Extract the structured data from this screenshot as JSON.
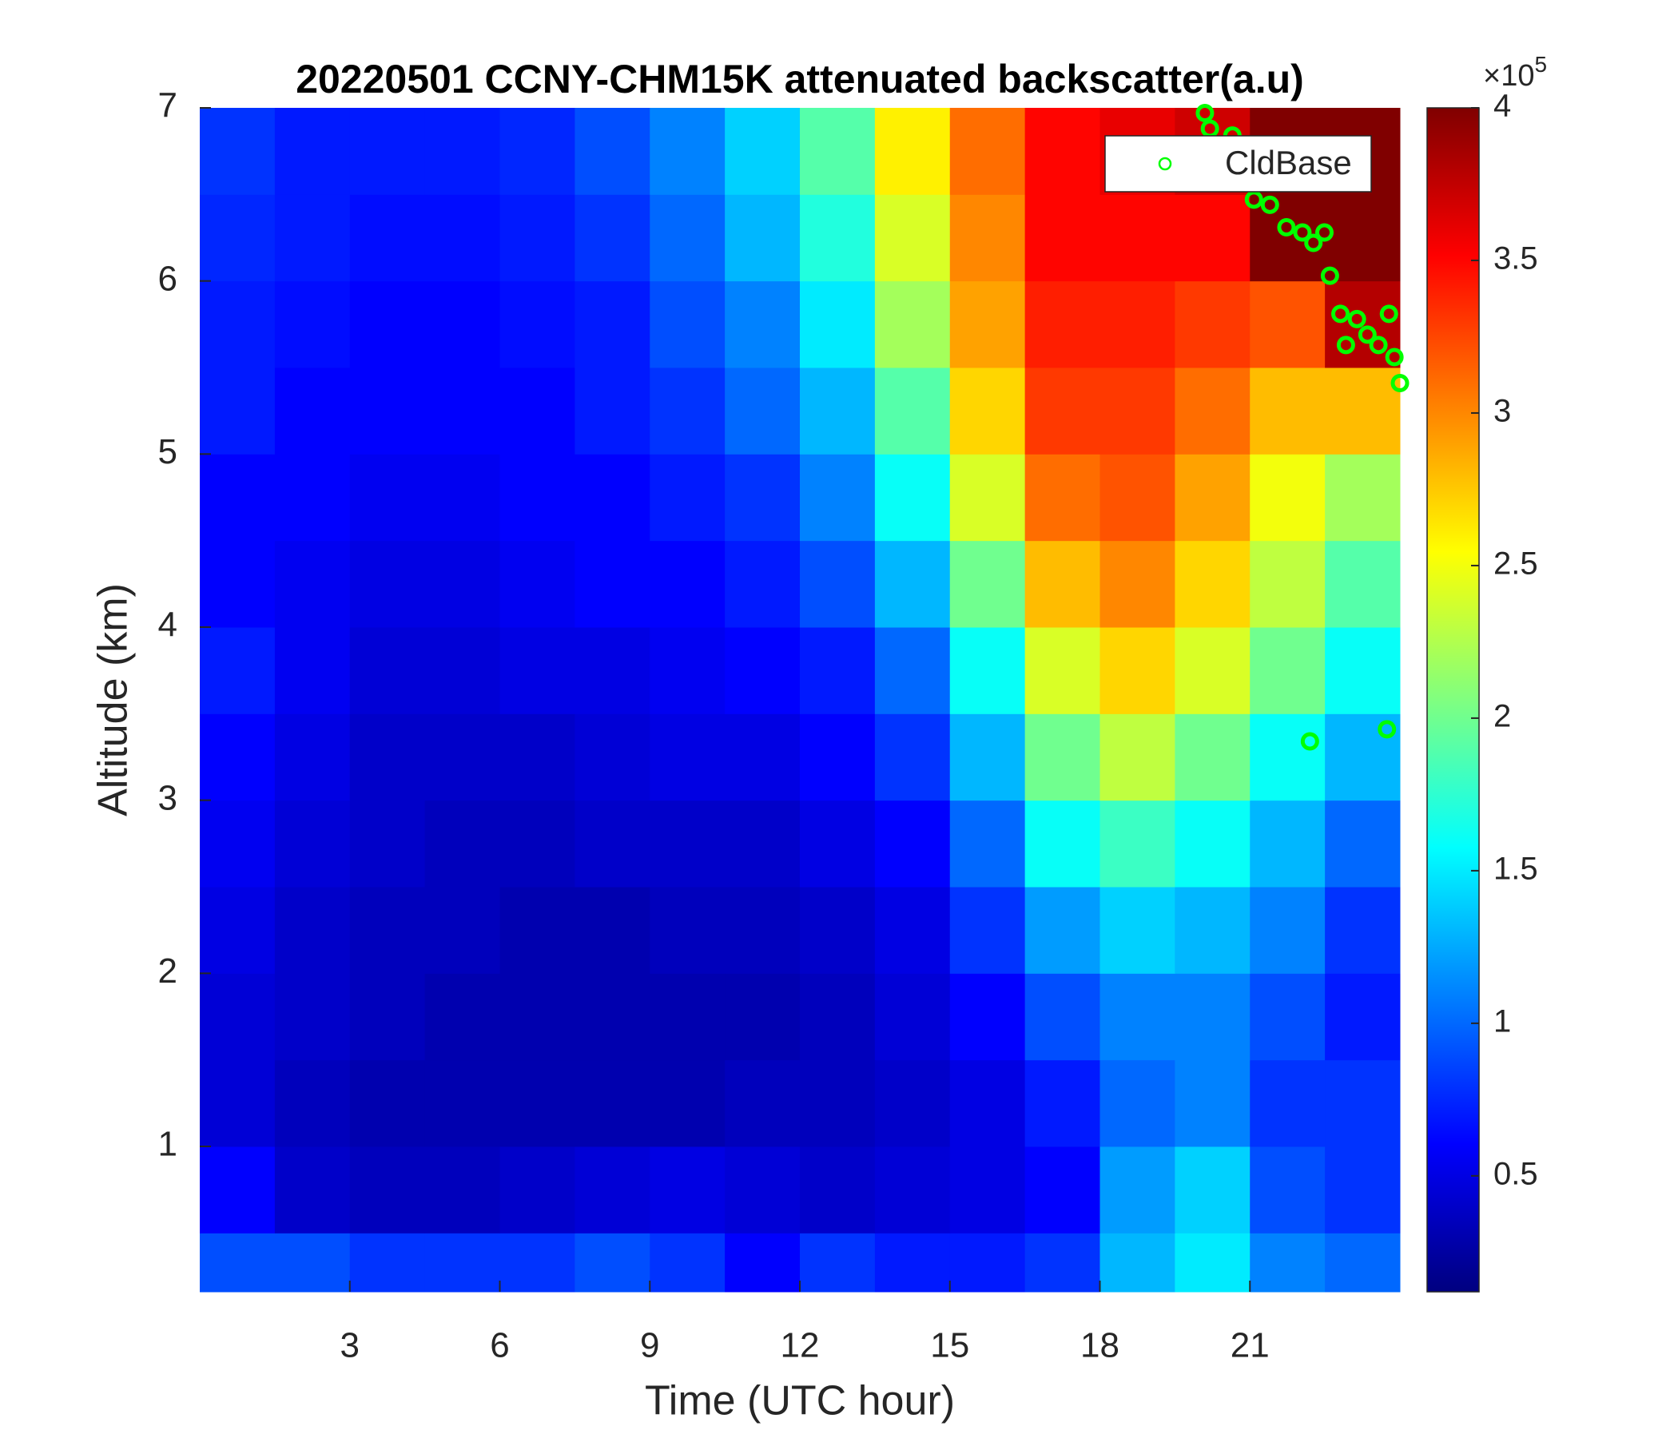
{
  "chart_data": {
    "type": "heatmap",
    "title": "20220501 CCNY-CHM15K attenuated backscatter(a.u)",
    "x_label": "Time (UTC hour)",
    "y_label": "Altitude (km)",
    "xlim": [
      0,
      24
    ],
    "ylim": [
      0.16,
      7
    ],
    "xticks": [
      3,
      6,
      9,
      12,
      15,
      18,
      21
    ],
    "yticks": [
      1,
      2,
      3,
      4,
      5,
      6,
      7
    ],
    "colormap": "jet",
    "clim": [
      0.12,
      4
    ],
    "colorbar_ticks": [
      0.5,
      1,
      1.5,
      2,
      2.5,
      3,
      3.5,
      4
    ],
    "colorbar_multiplier_base": "×10",
    "colorbar_multiplier_exponent": "5",
    "x_edges": [
      0,
      1.5,
      3,
      4.5,
      6,
      7.5,
      9,
      10.5,
      12,
      13.5,
      15,
      16.5,
      18,
      19.5,
      21,
      22.5,
      24
    ],
    "y_edges": [
      0.16,
      0.5,
      1,
      1.5,
      2,
      2.5,
      3,
      3.5,
      4,
      4.5,
      5,
      5.5,
      6,
      6.5,
      7
    ],
    "z": [
      [
        0.9,
        0.9,
        0.8,
        0.8,
        0.8,
        0.9,
        0.8,
        0.6,
        0.8,
        0.7,
        0.7,
        0.8,
        1.3,
        1.5,
        1.1,
        1.0
      ],
      [
        0.6,
        0.4,
        0.35,
        0.35,
        0.4,
        0.45,
        0.5,
        0.45,
        0.4,
        0.45,
        0.5,
        0.6,
        1.2,
        1.4,
        0.9,
        0.8
      ],
      [
        0.45,
        0.35,
        0.3,
        0.3,
        0.3,
        0.3,
        0.3,
        0.35,
        0.35,
        0.4,
        0.5,
        0.7,
        1.0,
        1.1,
        0.8,
        0.8
      ],
      [
        0.45,
        0.4,
        0.35,
        0.3,
        0.3,
        0.3,
        0.3,
        0.3,
        0.35,
        0.45,
        0.6,
        0.9,
        1.1,
        1.1,
        0.9,
        0.7
      ],
      [
        0.5,
        0.4,
        0.35,
        0.35,
        0.3,
        0.3,
        0.35,
        0.35,
        0.4,
        0.5,
        0.8,
        1.2,
        1.4,
        1.3,
        1.1,
        0.8
      ],
      [
        0.55,
        0.45,
        0.4,
        0.35,
        0.35,
        0.4,
        0.4,
        0.4,
        0.5,
        0.6,
        1.0,
        1.6,
        1.8,
        1.6,
        1.3,
        1.0
      ],
      [
        0.6,
        0.5,
        0.4,
        0.4,
        0.4,
        0.45,
        0.5,
        0.5,
        0.6,
        0.8,
        1.3,
        2.0,
        2.3,
        2.0,
        1.6,
        1.3
      ],
      [
        0.7,
        0.55,
        0.45,
        0.45,
        0.5,
        0.5,
        0.55,
        0.6,
        0.7,
        1.0,
        1.6,
        2.4,
        2.7,
        2.4,
        2.0,
        1.6
      ],
      [
        0.6,
        0.55,
        0.5,
        0.5,
        0.55,
        0.6,
        0.6,
        0.7,
        0.9,
        1.3,
        2.0,
        2.8,
        3.0,
        2.7,
        2.3,
        1.9
      ],
      [
        0.6,
        0.6,
        0.55,
        0.55,
        0.6,
        0.6,
        0.7,
        0.8,
        1.1,
        1.6,
        2.4,
        3.1,
        3.2,
        2.9,
        2.5,
        2.2
      ],
      [
        0.7,
        0.6,
        0.6,
        0.6,
        0.6,
        0.7,
        0.8,
        1.0,
        1.3,
        1.9,
        2.7,
        3.3,
        3.3,
        3.1,
        2.8,
        2.8
      ],
      [
        0.7,
        0.65,
        0.6,
        0.6,
        0.65,
        0.7,
        0.9,
        1.1,
        1.5,
        2.2,
        2.9,
        3.4,
        3.4,
        3.3,
        3.2,
        3.8
      ],
      [
        0.75,
        0.7,
        0.65,
        0.65,
        0.7,
        0.8,
        1.0,
        1.3,
        1.7,
        2.4,
        3.0,
        3.5,
        3.5,
        3.5,
        4.0,
        4.0
      ],
      [
        0.8,
        0.7,
        0.7,
        0.7,
        0.75,
        0.9,
        1.1,
        1.4,
        1.9,
        2.6,
        3.1,
        3.5,
        3.6,
        3.7,
        4.0,
        4.0
      ]
    ],
    "series": [
      {
        "name": "CldBase",
        "color": "#00ff00",
        "x": [
          20.1,
          20.2,
          20.65,
          21.08,
          21.4,
          21.73,
          22.05,
          22.27,
          22.49,
          22.6,
          22.81,
          22.92,
          23.14,
          23.35,
          23.57,
          23.78,
          23.89,
          24.0,
          22.2,
          23.74
        ],
        "y": [
          6.97,
          6.88,
          6.84,
          6.47,
          6.44,
          6.31,
          6.28,
          6.22,
          6.28,
          6.03,
          5.81,
          5.63,
          5.78,
          5.69,
          5.63,
          5.81,
          5.56,
          5.41,
          3.34,
          3.41
        ]
      }
    ],
    "legend_position": "upper right"
  }
}
